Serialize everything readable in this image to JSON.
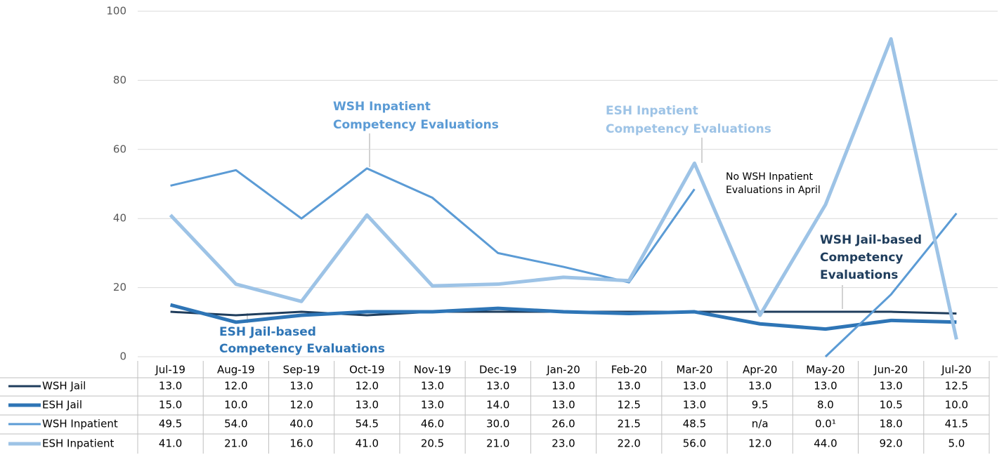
{
  "chart_data": {
    "type": "line",
    "categories": [
      "Jul-19",
      "Aug-19",
      "Sep-19",
      "Oct-19",
      "Nov-19",
      "Dec-19",
      "Jan-20",
      "Feb-20",
      "Mar-20",
      "Apr-20",
      "May-20",
      "Jun-20",
      "Jul-20"
    ],
    "series": [
      {
        "name": "WSH Jail",
        "color": "#1f3d5c",
        "values": [
          13,
          12,
          13,
          12,
          13,
          13,
          13,
          13,
          13,
          13,
          13,
          13,
          12.5
        ],
        "value_labels": [
          "13.0",
          "12.0",
          "13.0",
          "12.0",
          "13.0",
          "13.0",
          "13.0",
          "13.0",
          "13.0",
          "13.0",
          "13.0",
          "13.0",
          "12.5"
        ]
      },
      {
        "name": "ESH Jail",
        "color": "#2e75b6",
        "values": [
          15,
          10,
          12,
          13,
          13,
          14,
          13,
          12.5,
          13,
          9.5,
          8,
          10.5,
          10
        ],
        "value_labels": [
          "15.0",
          "10.0",
          "12.0",
          "13.0",
          "13.0",
          "14.0",
          "13.0",
          "12.5",
          "13.0",
          "9.5",
          "8.0",
          "10.5",
          "10.0"
        ]
      },
      {
        "name": "WSH Inpatient",
        "color": "#5b9bd5",
        "values": [
          49.5,
          54,
          40,
          54.5,
          46,
          30,
          26,
          21.5,
          48.5,
          null,
          0,
          18,
          41.5
        ],
        "value_labels": [
          "49.5",
          "54.0",
          "40.0",
          "54.5",
          "46.0",
          "30.0",
          "26.0",
          "21.5",
          "48.5",
          "n/a",
          "0.0¹",
          "18.0",
          "41.5"
        ]
      },
      {
        "name": "ESH Inpatient",
        "color": "#9dc3e6",
        "values": [
          41,
          21,
          16,
          41,
          20.5,
          21,
          23,
          22,
          56,
          12,
          44,
          92,
          5
        ],
        "value_labels": [
          "41.0",
          "21.0",
          "16.0",
          "41.0",
          "20.5",
          "21.0",
          "23.0",
          "22.0",
          "56.0",
          "12.0",
          "44.0",
          "92.0",
          "5.0"
        ]
      }
    ],
    "ylim": [
      0,
      100
    ],
    "yticks": [
      0,
      20,
      40,
      60,
      80,
      100
    ],
    "grid": true,
    "annotations": [
      {
        "lines": [
          "WSH Inpatient",
          "Competency Evaluations"
        ],
        "color": "#5b9bd5"
      },
      {
        "lines": [
          "ESH Inpatient",
          "Competency Evaluations"
        ],
        "color": "#9dc3e6"
      },
      {
        "lines": [
          "No WSH Inpatient",
          "Evaluations in April"
        ],
        "color": "#000000"
      },
      {
        "lines": [
          "WSH Jail-based",
          "Competency",
          "Evaluations"
        ],
        "color": "#1f3d5c"
      },
      {
        "lines": [
          "ESH Jail-based",
          "Competency Evaluations"
        ],
        "color": "#2e75b6"
      }
    ]
  }
}
